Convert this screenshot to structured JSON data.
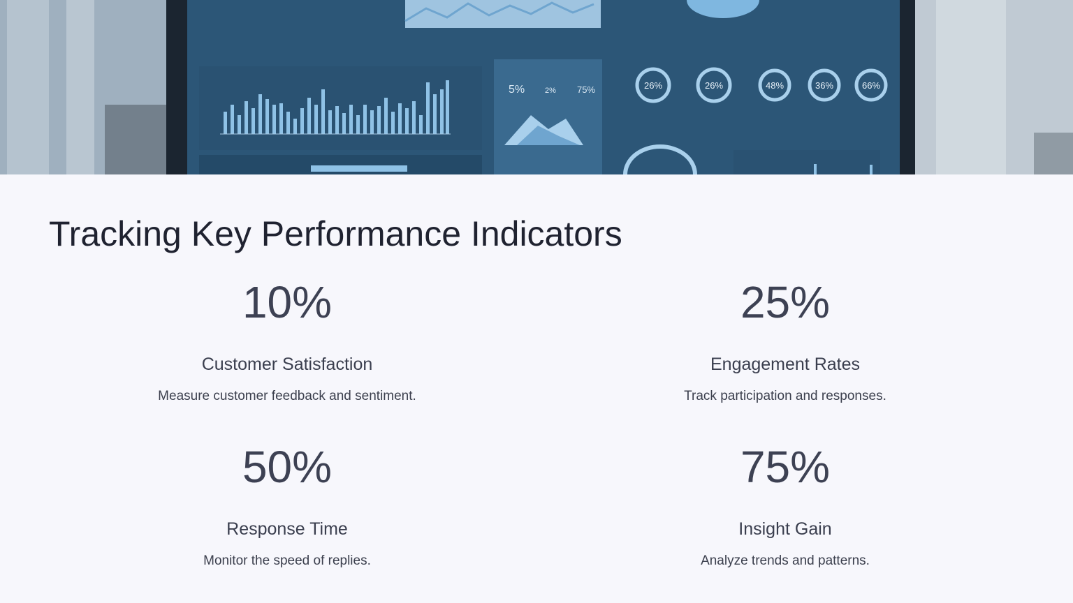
{
  "slide": {
    "title": "Tracking Key Performance Indicators"
  },
  "hero": {
    "image": "dashboard-monitor-photo",
    "gauges": [
      "26%",
      "26%",
      "48%",
      "36%",
      "66%"
    ],
    "panel_stats": [
      "5%",
      "2%",
      "75%"
    ]
  },
  "kpis": [
    {
      "value": "10%",
      "label": "Customer Satisfaction",
      "description": "Measure customer feedback and sentiment."
    },
    {
      "value": "25%",
      "label": "Engagement Rates",
      "description": "Track participation and responses."
    },
    {
      "value": "50%",
      "label": "Response Time",
      "description": "Monitor the speed of replies."
    },
    {
      "value": "75%",
      "label": "Insight Gain",
      "description": "Analyze trends and patterns."
    }
  ],
  "colors": {
    "background": "#f7f7fc",
    "title": "#1f2230",
    "kpi_text": "#3d4153",
    "dashboard_blue": "#2d5a80"
  }
}
